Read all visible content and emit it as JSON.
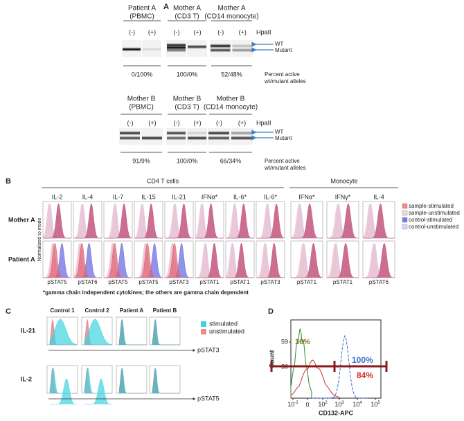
{
  "panel_a": {
    "label": "A",
    "lanes": [
      "(-)",
      "(+)"
    ],
    "enzyme": "HpaII",
    "wt": "WT",
    "mutant": "Mutant",
    "percent_label": [
      "Percent active",
      "wt/mutant alleles"
    ],
    "rows": [
      {
        "groups": [
          {
            "title": [
              "Patient A",
              "(PBMC)"
            ],
            "ratio": "0/100%"
          },
          {
            "title": [
              "Mother A",
              "(CD3 T)"
            ],
            "ratio": "100/0%"
          },
          {
            "title": [
              "Mother A",
              "(CD14 monocyte)"
            ],
            "ratio": "52/48%"
          }
        ]
      },
      {
        "groups": [
          {
            "title": [
              "Mother B",
              "(PBMC)"
            ],
            "ratio": "91/9%"
          },
          {
            "title": [
              "Mother B",
              "(CD3 T)"
            ],
            "ratio": "100/0%"
          },
          {
            "title": [
              "Mother B",
              "(CD14 monocyte)"
            ],
            "ratio": "66/34%"
          }
        ]
      }
    ]
  },
  "panel_b": {
    "label": "B",
    "cd4_header": "CD4 T cells",
    "monocyte_header": "Monocyte",
    "cytokines": [
      "IL-2",
      "IL-4",
      "IL-7",
      "IL-15",
      "IL-21",
      "IFNα*",
      "IL-6*",
      "IL-6*",
      "IFNα*",
      "IFNγ*",
      "IL-4"
    ],
    "readouts": [
      "pSTAT5",
      "pSTAT6",
      "pSTAT5",
      "pSTAT5",
      "pSTAT3",
      "pSTAT1",
      "pSTAT1",
      "pSTAT3",
      "pSTAT1",
      "pSTAT1",
      "pSTAT6"
    ],
    "rows": [
      "Mother A",
      "Patient A"
    ],
    "y_axis": "Normalized to mode",
    "legend": [
      "sample-stimulated",
      "sample-unstimulated",
      "control-stimulated",
      "control-unstimulated"
    ],
    "footnote": "*gamma chain independent cytokines; the others are gamma chain dependent"
  },
  "panel_c": {
    "label": "C",
    "columns": [
      "Control  1",
      "Control 2",
      "Patient A",
      "Patient B"
    ],
    "rows": [
      {
        "name": "IL-21",
        "readout": "pSTAT3"
      },
      {
        "name": "IL-2",
        "readout": "pSTAT5"
      }
    ],
    "legend": [
      "stimulated",
      "unstimulated"
    ]
  },
  "panel_d": {
    "label": "D",
    "y_label": "Count",
    "x_label": "CD132-APC",
    "yticks": [
      "59",
      "30"
    ],
    "xticks": [
      {
        "base": "10",
        "exp": "-2"
      },
      "0",
      {
        "base": "10",
        "exp": "2"
      },
      {
        "base": "10",
        "exp": "3"
      },
      {
        "base": "10",
        "exp": "4"
      },
      {
        "base": "10",
        "exp": "5"
      }
    ],
    "gate_low": "16%",
    "control_pct": "100%",
    "patient_pct": "84%"
  }
}
